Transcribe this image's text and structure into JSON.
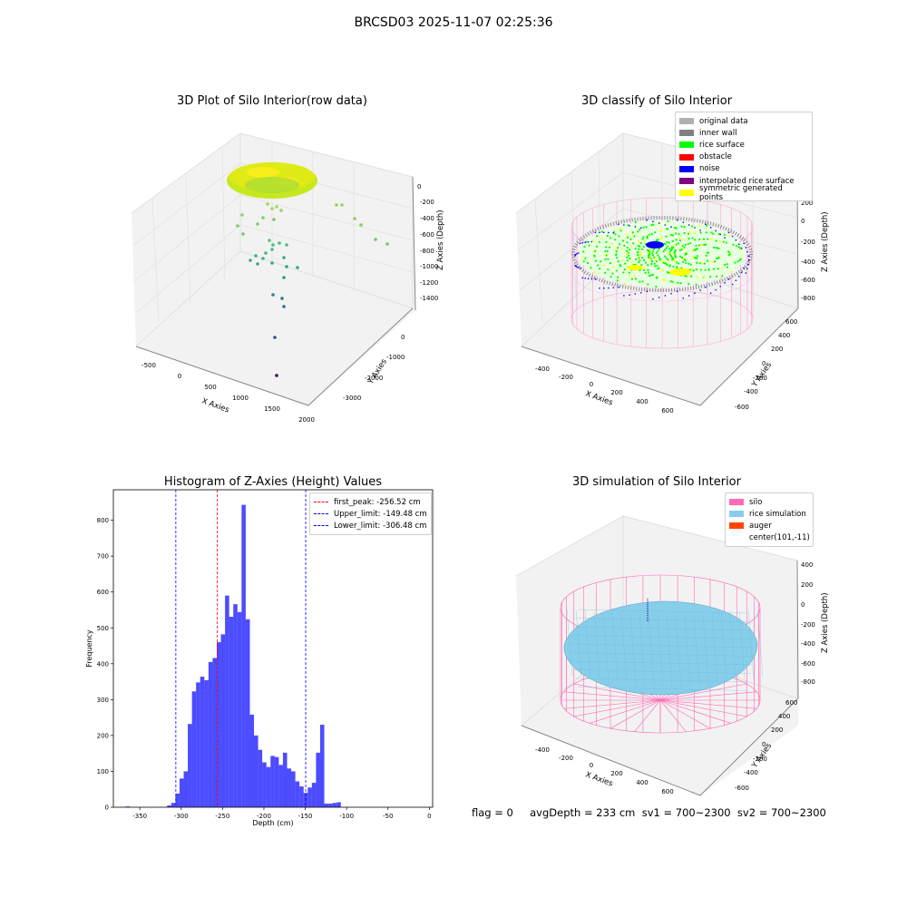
{
  "figure": {
    "title": "BRCSD03 2025-11-07 02:25:36",
    "footer": "flag = 0     avgDepth = 233 cm  sv1 = 700~2300  sv2 = 700~2300"
  },
  "panels": {
    "raw": {
      "title": "3D Plot of Silo Interior(row data)",
      "xlabel": "X Axies",
      "ylabel": "Y Axies",
      "zlabel": "Z Axies (Depth)",
      "xticks": [
        "-500",
        "0",
        "500",
        "1000",
        "1500",
        "2000"
      ],
      "yticks": [
        "-3000",
        "-2000",
        "-1000",
        "0"
      ],
      "zticks": [
        "0",
        "-200",
        "-400",
        "-600",
        "-800",
        "-1000",
        "-1200",
        "-1400"
      ]
    },
    "classify": {
      "title": "3D classify of Silo Interior",
      "xlabel": "X Axies",
      "ylabel": "Y Axies",
      "zlabel": "Z Axies (Depth)",
      "xticks": [
        "-400",
        "-200",
        "0",
        "200",
        "400",
        "600"
      ],
      "yticks": [
        "-600",
        "-400",
        "-200",
        "0",
        "200",
        "400",
        "600"
      ],
      "zticks": [
        "200",
        "0",
        "-200",
        "-400",
        "-600",
        "-800"
      ],
      "legend": [
        {
          "label": "original data",
          "color": "#b0b0b0"
        },
        {
          "label": "inner wall",
          "color": "#808080"
        },
        {
          "label": "rice surface",
          "color": "#00ff00"
        },
        {
          "label": "obstacle",
          "color": "#ff0000"
        },
        {
          "label": "noise",
          "color": "#0000ff"
        },
        {
          "label": "interpolated rice surface",
          "color": "#800080"
        },
        {
          "label": "symmetric generated points",
          "color": "#ffff00"
        }
      ]
    },
    "simulation": {
      "title": "3D simulation of Silo Interior",
      "xlabel": "X Axies",
      "ylabel": "Y Axies",
      "zlabel": "Z Axies (Depth)",
      "xticks": [
        "-400",
        "-200",
        "0",
        "200",
        "400",
        "600"
      ],
      "yticks": [
        "-600",
        "-400",
        "-200",
        "0",
        "200",
        "400",
        "600"
      ],
      "zticks": [
        "400",
        "200",
        "0",
        "-200",
        "-400",
        "-600",
        "-800"
      ],
      "legend": [
        {
          "label": "silo",
          "color": "#ff69b4"
        },
        {
          "label": "rice simulation",
          "color": "#87ceeb"
        },
        {
          "label": "auger",
          "color": "#ff4500"
        },
        {
          "label": "center(101,-11)",
          "color": ""
        }
      ]
    }
  },
  "chart_data": {
    "type": "bar",
    "title": "Histogram of Z-Axies (Height) Values",
    "xlabel": "Depth (cm)",
    "ylabel": "Frequency",
    "xlim": [
      -382,
      4
    ],
    "ylim": [
      0,
      885
    ],
    "xticks": [
      -350,
      -300,
      -250,
      -200,
      -150,
      -100,
      -50,
      0
    ],
    "yticks": [
      0,
      100,
      200,
      300,
      400,
      500,
      600,
      700,
      800
    ],
    "bar_color": "#0000ff",
    "bins": [
      {
        "x0": -367,
        "x1": -362,
        "count": 2
      },
      {
        "x0": -317,
        "x1": -312,
        "count": 5
      },
      {
        "x0": -312,
        "x1": -307,
        "count": 12
      },
      {
        "x0": -307,
        "x1": -302,
        "count": 38
      },
      {
        "x0": -302,
        "x1": -297,
        "count": 80
      },
      {
        "x0": -297,
        "x1": -292,
        "count": 100
      },
      {
        "x0": -292,
        "x1": -287,
        "count": 232
      },
      {
        "x0": -287,
        "x1": -282,
        "count": 323
      },
      {
        "x0": -282,
        "x1": -277,
        "count": 348
      },
      {
        "x0": -277,
        "x1": -272,
        "count": 364
      },
      {
        "x0": -272,
        "x1": -267,
        "count": 354
      },
      {
        "x0": -267,
        "x1": -262,
        "count": 405
      },
      {
        "x0": -262,
        "x1": -257,
        "count": 416
      },
      {
        "x0": -257,
        "x1": -252,
        "count": 460
      },
      {
        "x0": -252,
        "x1": -247,
        "count": 482
      },
      {
        "x0": -247,
        "x1": -242,
        "count": 590
      },
      {
        "x0": -242,
        "x1": -237,
        "count": 531
      },
      {
        "x0": -237,
        "x1": -232,
        "count": 566
      },
      {
        "x0": -232,
        "x1": -227,
        "count": 544
      },
      {
        "x0": -227,
        "x1": -222,
        "count": 843
      },
      {
        "x0": -222,
        "x1": -217,
        "count": 524
      },
      {
        "x0": -217,
        "x1": -212,
        "count": 258
      },
      {
        "x0": -212,
        "x1": -207,
        "count": 200
      },
      {
        "x0": -207,
        "x1": -202,
        "count": 160
      },
      {
        "x0": -202,
        "x1": -197,
        "count": 125
      },
      {
        "x0": -197,
        "x1": -192,
        "count": 112
      },
      {
        "x0": -192,
        "x1": -187,
        "count": 143
      },
      {
        "x0": -187,
        "x1": -182,
        "count": 140
      },
      {
        "x0": -182,
        "x1": -177,
        "count": 118
      },
      {
        "x0": -177,
        "x1": -172,
        "count": 152
      },
      {
        "x0": -172,
        "x1": -167,
        "count": 108
      },
      {
        "x0": -167,
        "x1": -162,
        "count": 100
      },
      {
        "x0": -162,
        "x1": -157,
        "count": 72
      },
      {
        "x0": -157,
        "x1": -152,
        "count": 58
      },
      {
        "x0": -152,
        "x1": -147,
        "count": 40
      },
      {
        "x0": -147,
        "x1": -142,
        "count": 55
      },
      {
        "x0": -142,
        "x1": -137,
        "count": 68
      },
      {
        "x0": -137,
        "x1": -132,
        "count": 152
      },
      {
        "x0": -132,
        "x1": -127,
        "count": 230
      },
      {
        "x0": -127,
        "x1": -122,
        "count": 10
      },
      {
        "x0": -122,
        "x1": -117,
        "count": 10
      },
      {
        "x0": -117,
        "x1": -112,
        "count": 12
      },
      {
        "x0": -112,
        "x1": -107,
        "count": 14
      }
    ],
    "vlines": [
      {
        "label": "first_peak: -256.52 cm",
        "x": -256.52,
        "color": "#ff0000"
      },
      {
        "label": "Upper_limit: -149.48 cm",
        "x": -149.48,
        "color": "#0000ff"
      },
      {
        "label": "Lower_limit: -306.48 cm",
        "x": -306.48,
        "color": "#0000ff"
      }
    ]
  }
}
